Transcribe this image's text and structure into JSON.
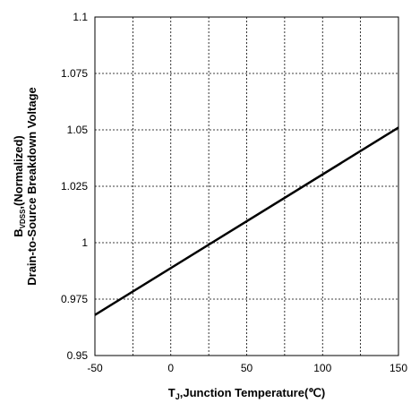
{
  "chart_data": {
    "type": "line",
    "xlabel_parts": {
      "base": "T",
      "sub": "J",
      "rest": ",Junction Temperature(℃)"
    },
    "ylabel_line1_parts": {
      "base": "B",
      "sub": "VDSS",
      "rest": ",(Normalized)"
    },
    "ylabel_line2": "Drain-to-Source Breakdown Voltage",
    "xlim": [
      -50,
      150
    ],
    "ylim": [
      0.95,
      1.1
    ],
    "x_ticks": [
      -50,
      -25,
      0,
      25,
      50,
      75,
      100,
      125,
      150
    ],
    "y_ticks": [
      0.95,
      0.975,
      1.0,
      1.025,
      1.05,
      1.075,
      1.1
    ],
    "x_tick_labels": [
      "-50",
      "",
      "0",
      "",
      "50",
      "",
      "100",
      "",
      "150"
    ],
    "y_tick_labels": [
      "0.95",
      "0.975",
      "1",
      "1.025",
      "1.05",
      "1.075",
      "1.1"
    ],
    "grid": true,
    "grid_style": "dashed",
    "series": [
      {
        "x": [
          -50,
          150
        ],
        "y": [
          0.968,
          1.051
        ],
        "color": "#000000"
      }
    ]
  }
}
